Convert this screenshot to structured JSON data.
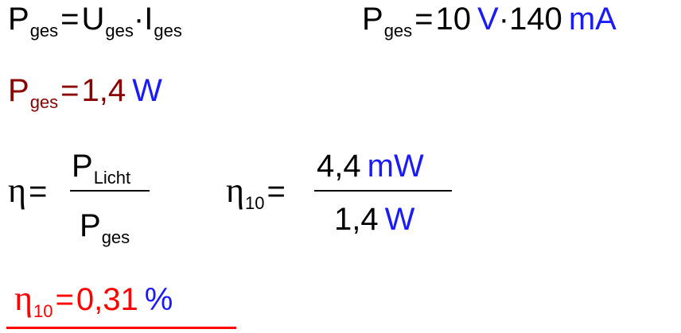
{
  "eq1": {
    "p": "P",
    "p_sub": "ges",
    "equals": "=",
    "u": "U",
    "u_sub": "ges",
    "dot": "·",
    "i": "I",
    "i_sub": "ges"
  },
  "eq2": {
    "p": "P",
    "p_sub": "ges",
    "equals": "=",
    "voltage": "10",
    "voltage_unit": "V",
    "dot": "·",
    "current": "140",
    "current_unit": "mA"
  },
  "eq3": {
    "p": "P",
    "p_sub": "ges",
    "equals": "=",
    "value": "1,4",
    "unit": "W"
  },
  "eq4": {
    "eta": "η",
    "equals": "=",
    "numerator": "P",
    "numerator_sub": "Licht",
    "denominator": "P",
    "denominator_sub": "ges"
  },
  "eq5": {
    "eta": "η",
    "eta_sub": "10",
    "equals": "=",
    "numerator": "4,4",
    "numerator_unit": "mW",
    "denominator": "1,4",
    "denominator_unit": "W"
  },
  "eq6": {
    "eta": "η",
    "eta_sub": "10",
    "equals": "=",
    "value": "0,31",
    "unit": "%"
  }
}
